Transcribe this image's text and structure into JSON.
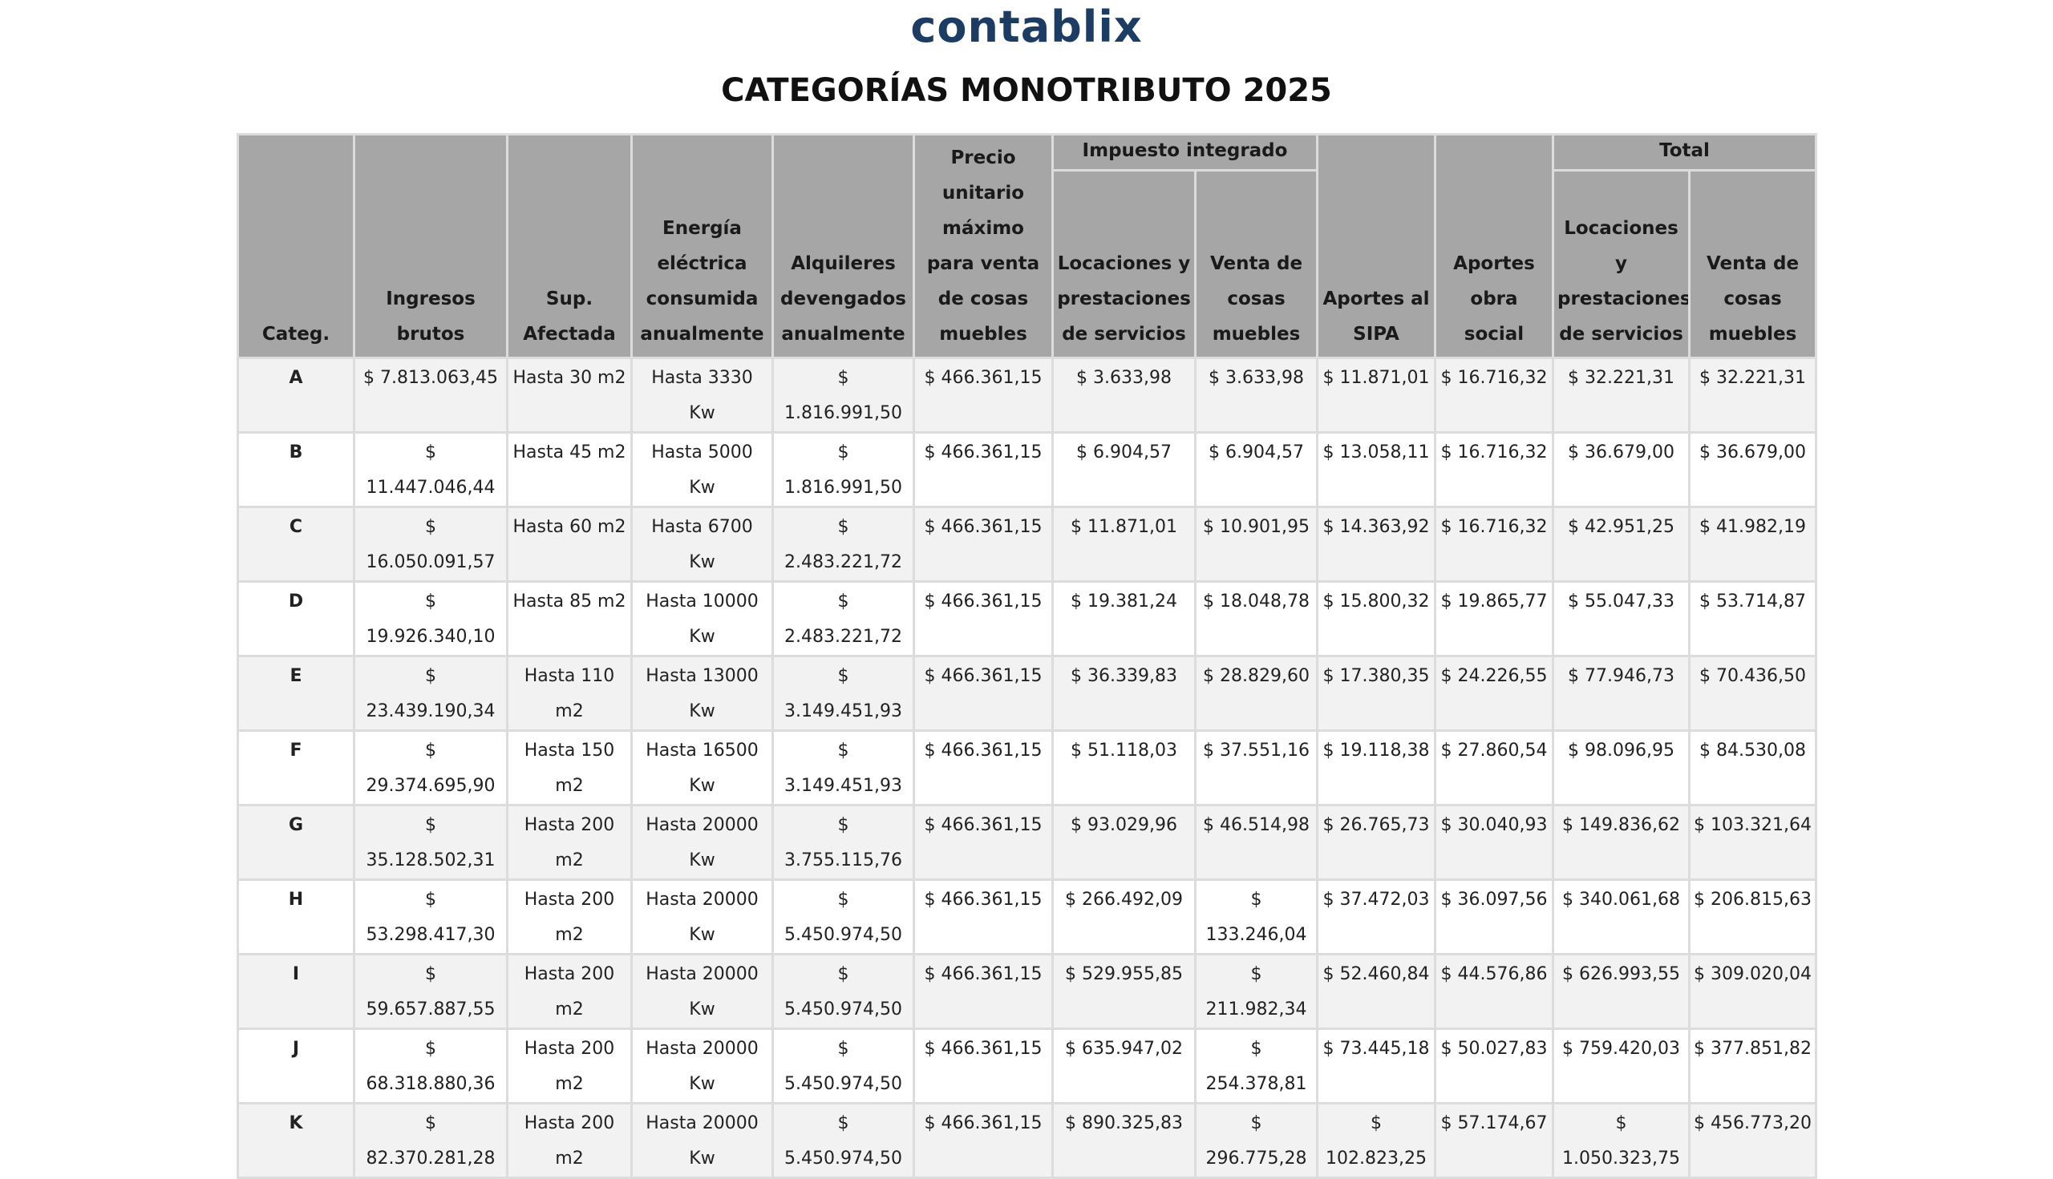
{
  "header": {
    "logo": "contablix",
    "title": "CATEGORÍAS MONOTRIBUTO 2025"
  },
  "table": {
    "group_headers": [
      "Impuesto integrado",
      "Total"
    ],
    "columns": [
      "Categ.",
      "Ingresos brutos",
      "Sup. Afectada",
      "Energía eléctrica consumida anualmente",
      "Alquileres devengados anualmente",
      "Precio unitario máximo para venta de cosas muebles",
      "Locaciones y prestaciones de servicios",
      "Venta de cosas muebles",
      "Aportes al SIPA",
      "Aportes obra social",
      "Locaciones y prestaciones de servicios",
      "Venta de cosas muebles"
    ],
    "rows": [
      [
        "A",
        "$ 7.813.063,45",
        "Hasta 30 m2",
        "Hasta 3330 Kw",
        "$ 1.816.991,50",
        "$ 466.361,15",
        "$ 3.633,98",
        "$ 3.633,98",
        "$ 11.871,01",
        "$ 16.716,32",
        "$ 32.221,31",
        "$ 32.221,31"
      ],
      [
        "B",
        "$ 11.447.046,44",
        "Hasta 45 m2",
        "Hasta 5000 Kw",
        "$ 1.816.991,50",
        "$ 466.361,15",
        "$ 6.904,57",
        "$ 6.904,57",
        "$ 13.058,11",
        "$ 16.716,32",
        "$ 36.679,00",
        "$ 36.679,00"
      ],
      [
        "C",
        "$ 16.050.091,57",
        "Hasta 60 m2",
        "Hasta 6700 Kw",
        "$ 2.483.221,72",
        "$ 466.361,15",
        "$ 11.871,01",
        "$ 10.901,95",
        "$ 14.363,92",
        "$ 16.716,32",
        "$ 42.951,25",
        "$ 41.982,19"
      ],
      [
        "D",
        "$ 19.926.340,10",
        "Hasta 85 m2",
        "Hasta 10000 Kw",
        "$ 2.483.221,72",
        "$ 466.361,15",
        "$ 19.381,24",
        "$ 18.048,78",
        "$ 15.800,32",
        "$ 19.865,77",
        "$ 55.047,33",
        "$ 53.714,87"
      ],
      [
        "E",
        "$ 23.439.190,34",
        "Hasta 110 m2",
        "Hasta 13000 Kw",
        "$ 3.149.451,93",
        "$ 466.361,15",
        "$ 36.339,83",
        "$ 28.829,60",
        "$ 17.380,35",
        "$ 24.226,55",
        "$ 77.946,73",
        "$ 70.436,50"
      ],
      [
        "F",
        "$ 29.374.695,90",
        "Hasta 150 m2",
        "Hasta 16500 Kw",
        "$ 3.149.451,93",
        "$ 466.361,15",
        "$ 51.118,03",
        "$ 37.551,16",
        "$ 19.118,38",
        "$ 27.860,54",
        "$ 98.096,95",
        "$ 84.530,08"
      ],
      [
        "G",
        "$ 35.128.502,31",
        "Hasta 200 m2",
        "Hasta 20000 Kw",
        "$ 3.755.115,76",
        "$ 466.361,15",
        "$ 93.029,96",
        "$ 46.514,98",
        "$ 26.765,73",
        "$ 30.040,93",
        "$ 149.836,62",
        "$ 103.321,64"
      ],
      [
        "H",
        "$ 53.298.417,30",
        "Hasta 200 m2",
        "Hasta 20000 Kw",
        "$ 5.450.974,50",
        "$ 466.361,15",
        "$ 266.492,09",
        "$ 133.246,04",
        "$ 37.472,03",
        "$ 36.097,56",
        "$ 340.061,68",
        "$ 206.815,63"
      ],
      [
        "I",
        "$ 59.657.887,55",
        "Hasta 200 m2",
        "Hasta 20000 Kw",
        "$ 5.450.974,50",
        "$ 466.361,15",
        "$ 529.955,85",
        "$ 211.982,34",
        "$ 52.460,84",
        "$ 44.576,86",
        "$ 626.993,55",
        "$ 309.020,04"
      ],
      [
        "J",
        "$ 68.318.880,36",
        "Hasta 200 m2",
        "Hasta 20000 Kw",
        "$ 5.450.974,50",
        "$ 466.361,15",
        "$ 635.947,02",
        "$ 254.378,81",
        "$ 73.445,18",
        "$ 50.027,83",
        "$ 759.420,03",
        "$ 377.851,82"
      ],
      [
        "K",
        "$ 82.370.281,28",
        "Hasta 200 m2",
        "Hasta 20000 Kw",
        "$ 5.450.974,50",
        "$ 466.361,15",
        "$ 890.325,83",
        "$ 296.775,28",
        "$ 102.823,25",
        "$ 57.174,67",
        "$ 1.050.323,75",
        "$ 456.773,20"
      ]
    ]
  }
}
